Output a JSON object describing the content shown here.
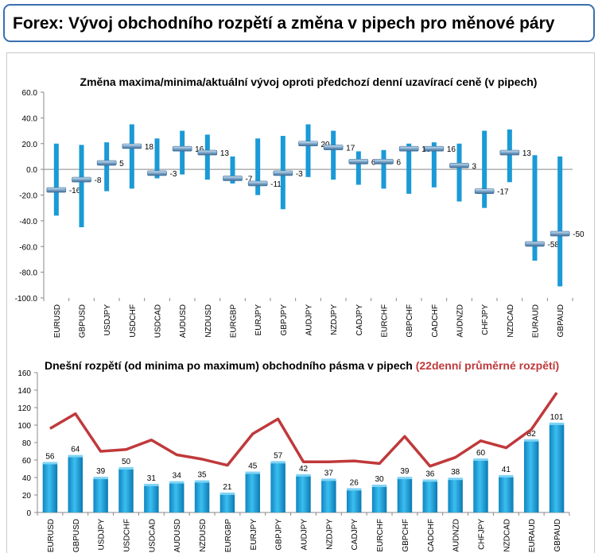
{
  "page_title": "Forex: Vývoj obchodního rozpětí a změna v pipech pro měnové páry",
  "colors": {
    "accent": "#1a9ad6",
    "line": "#c0393b",
    "title_border": "#3a6fb0",
    "subtitle_red": "#c0393b"
  },
  "chart_data": [
    {
      "type": "range",
      "title": "Změna maxima/minima/aktuální vývoj oproti předchozí denní uzavírací ceně (v pipech)",
      "categories": [
        "EURUSD",
        "GBPUSD",
        "USDJPY",
        "USDCHF",
        "USDCAD",
        "AUDUSD",
        "NZDUSD",
        "EURGBP",
        "EURJPY",
        "GBPJPY",
        "AUDJPY",
        "NZDJPY",
        "CADJPY",
        "EURCHF",
        "GBPCHF",
        "CADCHF",
        "AUDNZD",
        "CHFJPY",
        "NZDCAD",
        "EURAUD",
        "GBPAUD"
      ],
      "high": [
        20,
        19,
        21,
        35,
        24,
        30,
        27,
        10,
        24,
        26,
        35,
        30,
        14,
        15,
        20,
        21,
        20,
        30,
        31,
        11,
        10
      ],
      "low": [
        -36,
        -45,
        -17,
        -15,
        -7,
        -4,
        -8,
        -11,
        -20,
        -31,
        -6,
        -8,
        -12,
        -15,
        -19,
        -14,
        -25,
        -30,
        -10,
        -71,
        -91
      ],
      "current": [
        -16,
        -8,
        5,
        18,
        -3,
        16,
        13,
        -7,
        -11,
        -3,
        20,
        17,
        6,
        6,
        16,
        16,
        3,
        -17,
        13,
        -58,
        -50
      ],
      "ylim": [
        -100,
        60
      ],
      "yticks": [
        "60.0",
        "40.0",
        "20.0",
        "0.0",
        "-20.0",
        "-40.0",
        "-60.0",
        "-80.0",
        "-100.0"
      ],
      "grid": false
    },
    {
      "type": "bar+line",
      "title": "Dnešní rozpětí (od minima po maximum) obchodního pásma v pipech",
      "title_note": "(22denní průměrné rozpětí)",
      "categories": [
        "EURUSD",
        "GBPUSD",
        "USDJPY",
        "USDCHF",
        "USDCAD",
        "AUDUSD",
        "NZDUSD",
        "EURGBP",
        "EURJPY",
        "GBPJPY",
        "AUDJPY",
        "NZDJPY",
        "CADJPY",
        "EURCHF",
        "GBPCHF",
        "CADCHF",
        "AUDNZD",
        "CHFJPY",
        "NZDCAD",
        "EURAUD",
        "GBPAUD"
      ],
      "bars": [
        56,
        64,
        39,
        50,
        31,
        34,
        35,
        21,
        45,
        57,
        42,
        37,
        26,
        30,
        39,
        36,
        38,
        60,
        41,
        82,
        101
      ],
      "line": [
        96,
        113,
        70,
        72,
        83,
        66,
        61,
        54,
        90,
        107,
        58,
        58,
        59,
        56,
        87,
        53,
        63,
        82,
        74,
        95,
        137
      ],
      "ylim": [
        0,
        160
      ],
      "yticks": [
        "160",
        "140",
        "120",
        "100",
        "80",
        "60",
        "40",
        "20",
        "0"
      ],
      "grid": false
    }
  ]
}
